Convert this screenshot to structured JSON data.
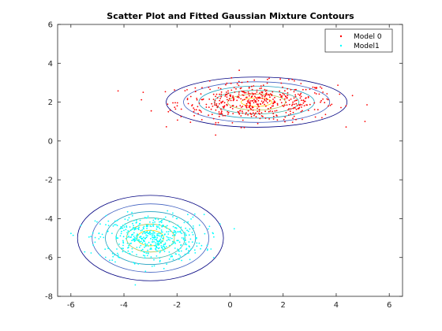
{
  "chart_data": {
    "type": "scatter",
    "title": "Scatter Plot and Fitted Gaussian Mixture Contours",
    "xlabel": "",
    "ylabel": "",
    "xlim": [
      -6.5,
      6.5
    ],
    "ylim": [
      -8,
      6
    ],
    "x_ticks": [
      -6,
      -4,
      -2,
      0,
      2,
      4,
      6
    ],
    "y_ticks": [
      -8,
      -6,
      -4,
      -2,
      0,
      2,
      4,
      6
    ],
    "grid": false,
    "legend_position": "top-right",
    "series": [
      {
        "name": "Model 0",
        "color": "#ff0000",
        "center": [
          1,
          2
        ],
        "std": [
          1.5,
          0.5
        ]
      },
      {
        "name": "Model1",
        "color": "#00ffff",
        "center": [
          -3,
          -5
        ],
        "std": [
          1,
          0.6
        ]
      }
    ],
    "contours": [
      {
        "center": [
          1,
          2
        ],
        "std": [
          1.45,
          0.55
        ],
        "levels": [
          0.4,
          0.75,
          1.1,
          1.5,
          1.9,
          2.35
        ]
      },
      {
        "center": [
          -3,
          -5
        ],
        "std": [
          1.0,
          0.8
        ],
        "levels": [
          0.5,
          0.9,
          1.3,
          1.7,
          2.2,
          2.75
        ]
      }
    ]
  }
}
